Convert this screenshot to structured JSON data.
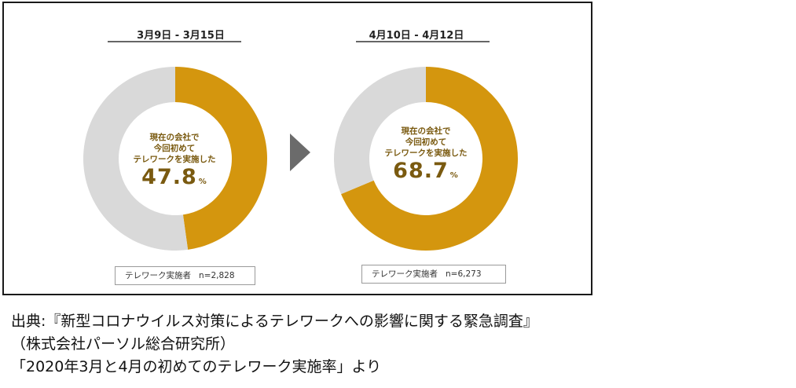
{
  "chart_data": [
    {
      "type": "pie",
      "title": "3月9日 - 3月15日",
      "center_label": [
        "現在の会社で",
        "今回初めて",
        "テレワークを実施した"
      ],
      "value": 47.8,
      "value_text": "47.8",
      "unit": "%",
      "slices": [
        {
          "label": "現在の会社で今回初めてテレワークを実施した",
          "value": 47.8,
          "color": "#D4960E"
        },
        {
          "label": "",
          "value": 52.2,
          "color": "#D9D9D9"
        }
      ],
      "sample_label": "テレワーク実施者",
      "sample_n": "n=2,828"
    },
    {
      "type": "pie",
      "title": "4月10日 - 4月12日",
      "center_label": [
        "現在の会社で",
        "今回初めて",
        "テレワークを実施した"
      ],
      "value": 68.7,
      "value_text": "68.7",
      "unit": "%",
      "slices": [
        {
          "label": "現在の会社で今回初めてテレワークを実施した",
          "value": 68.7,
          "color": "#D4960E"
        },
        {
          "label": "",
          "value": 31.3,
          "color": "#D9D9D9"
        }
      ],
      "sample_label": "テレワーク実施者",
      "sample_n": "n=6,273"
    }
  ],
  "colors": {
    "accent": "#D4960E",
    "remainder": "#D9D9D9",
    "value_text": "#7A5A10",
    "arrow": "#6B6B6B"
  },
  "caption": {
    "line1": "出典:『新型コロナウイルス対策によるテレワークへの影響に関する緊急調査』",
    "line2": "（株式会社パーソル総合研究所）",
    "line3": "「2020年3月と4月の初めてのテレワーク実施率」より"
  }
}
